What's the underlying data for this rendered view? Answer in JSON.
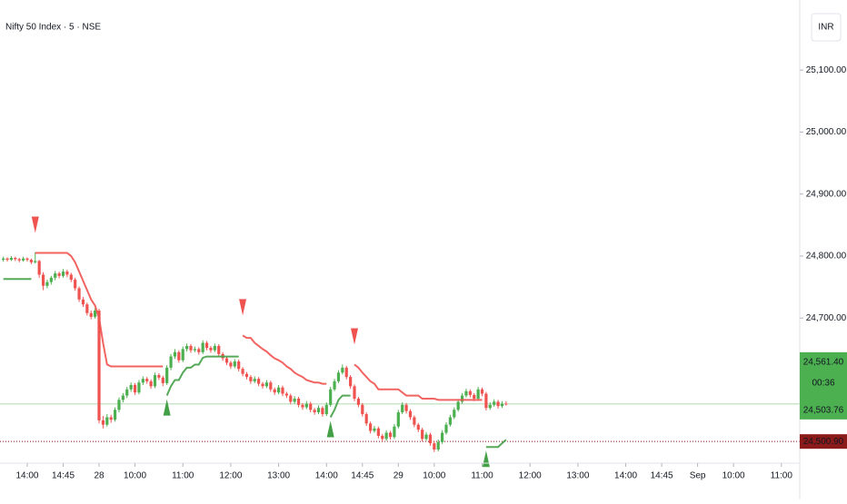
{
  "chart_data": {
    "type": "candlestick",
    "title": "Nifty 50 Index · 5 · NSE",
    "currency": "INR",
    "ylim": [
      24466,
      25213
    ],
    "yticks": [
      {
        "value": 24700,
        "label": "24,700.00"
      },
      {
        "value": 24800,
        "label": "24,800.00"
      },
      {
        "value": 24900,
        "label": "24,900.00"
      },
      {
        "value": 25000,
        "label": "25,000.00"
      },
      {
        "value": 25100,
        "label": "25,100.00"
      }
    ],
    "xlim": [
      -0.83,
      199.6
    ],
    "xticks": [
      {
        "value": 6,
        "label": "14:00"
      },
      {
        "value": 15,
        "label": "14:45"
      },
      {
        "value": 24,
        "label": "28"
      },
      {
        "value": 33,
        "label": "10:00"
      },
      {
        "value": 45,
        "label": "11:00"
      },
      {
        "value": 57,
        "label": "12:00"
      },
      {
        "value": 69,
        "label": "13:00"
      },
      {
        "value": 81,
        "label": "14:00"
      },
      {
        "value": 90,
        "label": "14:45"
      },
      {
        "value": 99,
        "label": "29"
      },
      {
        "value": 108,
        "label": "10:00"
      },
      {
        "value": 120,
        "label": "11:00"
      },
      {
        "value": 132,
        "label": "12:00"
      },
      {
        "value": 144,
        "label": "13:00"
      },
      {
        "value": 156,
        "label": "14:00"
      },
      {
        "value": 165,
        "label": "14:45"
      },
      {
        "value": 174,
        "label": "Sep"
      },
      {
        "value": 183,
        "label": "10:00"
      },
      {
        "value": 195,
        "label": "11:00"
      }
    ],
    "up_color": "#4caf50",
    "down_color": "#ef5350",
    "ohlc": [
      [
        24794,
        24799,
        24791,
        24796
      ],
      [
        24796,
        24798,
        24791,
        24794
      ],
      [
        24794,
        24800,
        24792,
        24797
      ],
      [
        24797,
        24799,
        24792,
        24795
      ],
      [
        24795,
        24797,
        24790,
        24793
      ],
      [
        24793,
        24799,
        24791,
        24796
      ],
      [
        24796,
        24798,
        24791,
        24794
      ],
      [
        24794,
        24796,
        24787,
        24790
      ],
      [
        24790,
        24806,
        24788,
        24792
      ],
      [
        24792,
        24794,
        24765,
        24770
      ],
      [
        24770,
        24774,
        24745,
        24752
      ],
      [
        24752,
        24762,
        24748,
        24758
      ],
      [
        24758,
        24768,
        24754,
        24765
      ],
      [
        24765,
        24776,
        24761,
        24772
      ],
      [
        24772,
        24775,
        24764,
        24768
      ],
      [
        24768,
        24779,
        24765,
        24775
      ],
      [
        24775,
        24778,
        24766,
        24770
      ],
      [
        24770,
        24773,
        24758,
        24762
      ],
      [
        24762,
        24765,
        24744,
        24748
      ],
      [
        24748,
        24751,
        24726,
        24730
      ],
      [
        24730,
        24734,
        24718,
        24722
      ],
      [
        24722,
        24725,
        24704,
        24708
      ],
      [
        24708,
        24712,
        24698,
        24702
      ],
      [
        24702,
        24716,
        24699,
        24712
      ],
      [
        24712,
        24715,
        24530,
        24535
      ],
      [
        24535,
        24542,
        24522,
        24528
      ],
      [
        24528,
        24545,
        24525,
        24540
      ],
      [
        24540,
        24544,
        24531,
        24536
      ],
      [
        24536,
        24556,
        24533,
        24552
      ],
      [
        24552,
        24572,
        24548,
        24568
      ],
      [
        24568,
        24579,
        24564,
        24575
      ],
      [
        24575,
        24589,
        24571,
        24585
      ],
      [
        24585,
        24596,
        24581,
        24592
      ],
      [
        24592,
        24595,
        24576,
        24580
      ],
      [
        24580,
        24600,
        24577,
        24596
      ],
      [
        24596,
        24606,
        24592,
        24602
      ],
      [
        24602,
        24605,
        24594,
        24598
      ],
      [
        24598,
        24601,
        24586,
        24590
      ],
      [
        24590,
        24612,
        24587,
        24608
      ],
      [
        24608,
        24611,
        24600,
        24604
      ],
      [
        24604,
        24607,
        24590,
        24595
      ],
      [
        24595,
        24624,
        24592,
        24620
      ],
      [
        24620,
        24642,
        24616,
        24638
      ],
      [
        24638,
        24650,
        24634,
        24645
      ],
      [
        24645,
        24648,
        24628,
        24632
      ],
      [
        24632,
        24654,
        24629,
        24650
      ],
      [
        24650,
        24659,
        24646,
        24655
      ],
      [
        24655,
        24658,
        24644,
        24648
      ],
      [
        24648,
        24654,
        24645,
        24650
      ],
      [
        24650,
        24653,
        24641,
        24645
      ],
      [
        24645,
        24664,
        24642,
        24660
      ],
      [
        24660,
        24663,
        24648,
        24652
      ],
      [
        24652,
        24655,
        24644,
        24648
      ],
      [
        24648,
        24659,
        24645,
        24655
      ],
      [
        24655,
        24658,
        24638,
        24642
      ],
      [
        24642,
        24645,
        24631,
        24635
      ],
      [
        24635,
        24638,
        24624,
        24628
      ],
      [
        24628,
        24631,
        24618,
        24622
      ],
      [
        24622,
        24634,
        24619,
        24630
      ],
      [
        24630,
        24633,
        24614,
        24618
      ],
      [
        24618,
        24621,
        24606,
        24610
      ],
      [
        24610,
        24613,
        24601,
        24605
      ],
      [
        24605,
        24608,
        24594,
        24598
      ],
      [
        24598,
        24606,
        24595,
        24602
      ],
      [
        24602,
        24605,
        24590,
        24594
      ],
      [
        24594,
        24597,
        24586,
        24590
      ],
      [
        24590,
        24600,
        24587,
        24596
      ],
      [
        24596,
        24599,
        24581,
        24585
      ],
      [
        24585,
        24588,
        24576,
        24580
      ],
      [
        24580,
        24592,
        24577,
        24588
      ],
      [
        24588,
        24591,
        24574,
        24578
      ],
      [
        24578,
        24581,
        24571,
        24575
      ],
      [
        24575,
        24578,
        24561,
        24565
      ],
      [
        24565,
        24574,
        24562,
        24570
      ],
      [
        24570,
        24573,
        24556,
        24560
      ],
      [
        24560,
        24563,
        24552,
        24556
      ],
      [
        24556,
        24566,
        24553,
        24562
      ],
      [
        24562,
        24565,
        24548,
        24552
      ],
      [
        24552,
        24555,
        24544,
        24548
      ],
      [
        24548,
        24559,
        24545,
        24555
      ],
      [
        24555,
        24558,
        24541,
        24545
      ],
      [
        24545,
        24564,
        24542,
        24560
      ],
      [
        24560,
        24589,
        24557,
        24585
      ],
      [
        24585,
        24602,
        24582,
        24598
      ],
      [
        24598,
        24616,
        24595,
        24612
      ],
      [
        24612,
        24625,
        24609,
        24620
      ],
      [
        24620,
        24623,
        24601,
        24605
      ],
      [
        24605,
        24608,
        24586,
        24590
      ],
      [
        24590,
        24593,
        24566,
        24570
      ],
      [
        24570,
        24573,
        24556,
        24560
      ],
      [
        24560,
        24563,
        24541,
        24545
      ],
      [
        24545,
        24548,
        24526,
        24530
      ],
      [
        24530,
        24533,
        24514,
        24518
      ],
      [
        24518,
        24526,
        24515,
        24522
      ],
      [
        24522,
        24525,
        24506,
        24510
      ],
      [
        24510,
        24513,
        24501,
        24505
      ],
      [
        24505,
        24519,
        24502,
        24515
      ],
      [
        24515,
        24518,
        24504,
        24508
      ],
      [
        24508,
        24529,
        24505,
        24525
      ],
      [
        24525,
        24552,
        24522,
        24548
      ],
      [
        24548,
        24564,
        24545,
        24560
      ],
      [
        24560,
        24563,
        24546,
        24550
      ],
      [
        24550,
        24553,
        24536,
        24540
      ],
      [
        24540,
        24543,
        24524,
        24528
      ],
      [
        24528,
        24531,
        24516,
        24520
      ],
      [
        24520,
        24523,
        24501,
        24505
      ],
      [
        24505,
        24516,
        24502,
        24512
      ],
      [
        24512,
        24515,
        24494,
        24498
      ],
      [
        24498,
        24501,
        24484,
        24488
      ],
      [
        24488,
        24504,
        24485,
        24500
      ],
      [
        24500,
        24519,
        24497,
        24515
      ],
      [
        24515,
        24532,
        24512,
        24528
      ],
      [
        24528,
        24544,
        24525,
        24540
      ],
      [
        24540,
        24556,
        24537,
        24552
      ],
      [
        24552,
        24569,
        24549,
        24565
      ],
      [
        24565,
        24579,
        24562,
        24575
      ],
      [
        24575,
        24586,
        24572,
        24582
      ],
      [
        24582,
        24585,
        24572,
        24576
      ],
      [
        24576,
        24579,
        24566,
        24570
      ],
      [
        24570,
        24589,
        24567,
        24585
      ],
      [
        24585,
        24588,
        24574,
        24578
      ],
      [
        24578,
        24581,
        24551,
        24555
      ],
      [
        24555,
        24564,
        24552,
        24560
      ],
      [
        24560,
        24569,
        24557,
        24565
      ],
      [
        24565,
        24568,
        24554,
        24558
      ],
      [
        24558,
        24566,
        24555,
        24562
      ],
      [
        24562,
        24566,
        24559,
        24561.4
      ]
    ],
    "supertrend": [
      {
        "direction": "up",
        "color": "#43a047",
        "values": [
          24763,
          24763,
          24763,
          24763,
          24763,
          24763,
          24763,
          24763,
          null,
          null,
          null,
          null,
          null,
          null,
          null,
          null,
          null,
          null,
          null,
          null,
          null,
          null,
          null,
          null,
          null,
          null,
          null,
          null,
          null,
          null,
          null,
          null,
          null,
          null,
          null,
          null,
          null,
          null,
          null,
          null,
          null,
          24575,
          24590,
          24600,
          24600,
          24612,
          24620,
          24620,
          24625,
          24625,
          24636,
          24638,
          24638,
          24638,
          24638,
          24638,
          24638,
          24638,
          24638,
          24638,
          null,
          null,
          null,
          null,
          null,
          null,
          null,
          null,
          null,
          null,
          null,
          null,
          null,
          null,
          null,
          null,
          null,
          null,
          null,
          null,
          null,
          null,
          24540,
          24552,
          24568,
          24575,
          24575,
          24575,
          null,
          null,
          null,
          null,
          null,
          null,
          null,
          null,
          null,
          null,
          null,
          null,
          null,
          null,
          null,
          null,
          null,
          null,
          null,
          null,
          null,
          null,
          null,
          null,
          null,
          null,
          null,
          null,
          null,
          null,
          null,
          null,
          null,
          24492,
          24492,
          24492,
          24492,
          24498,
          24503.76
        ]
      },
      {
        "direction": "down",
        "color": "#ef5350",
        "values": [
          null,
          null,
          null,
          null,
          null,
          null,
          null,
          null,
          24805,
          24805,
          24805,
          24805,
          24805,
          24805,
          24805,
          24805,
          24805,
          24800,
          24790,
          24775,
          24760,
          24745,
          24730,
          24720,
          24700,
          24660,
          24625,
          24622,
          24622,
          24622,
          24622,
          24622,
          24622,
          24622,
          24622,
          24622,
          24622,
          24622,
          24622,
          24622,
          24622,
          null,
          null,
          null,
          null,
          null,
          null,
          null,
          null,
          null,
          null,
          null,
          null,
          null,
          null,
          null,
          null,
          null,
          null,
          null,
          24672,
          24668,
          24668,
          24660,
          24655,
          24650,
          24646,
          24640,
          24635,
          24632,
          24628,
          24622,
          24618,
          24612,
          24608,
          24605,
          24600,
          24598,
          24596,
          24596,
          24594,
          24594,
          null,
          null,
          null,
          null,
          null,
          null,
          24625,
          24620,
          24612,
          24605,
          24598,
          24594,
          24585,
          24585,
          24585,
          24585,
          24585,
          24585,
          24580,
          24575,
          24575,
          24575,
          24575,
          24570,
          24570,
          24570,
          24570,
          24568,
          24568,
          24568,
          24568,
          24568,
          24568,
          24568,
          24568,
          24568,
          24568,
          24568,
          24568,
          null,
          null,
          null,
          null,
          null,
          null
        ]
      }
    ],
    "last_price": {
      "value": 24561.4,
      "label": "24,561.40",
      "color": "#4caf50"
    },
    "countdown": "00:36",
    "supertrend_label": {
      "value": 24503.76,
      "label": "24,503.76"
    },
    "previous_close": {
      "value": 24500.9,
      "label": "24,500.90",
      "color": "#8b1a1a"
    }
  }
}
